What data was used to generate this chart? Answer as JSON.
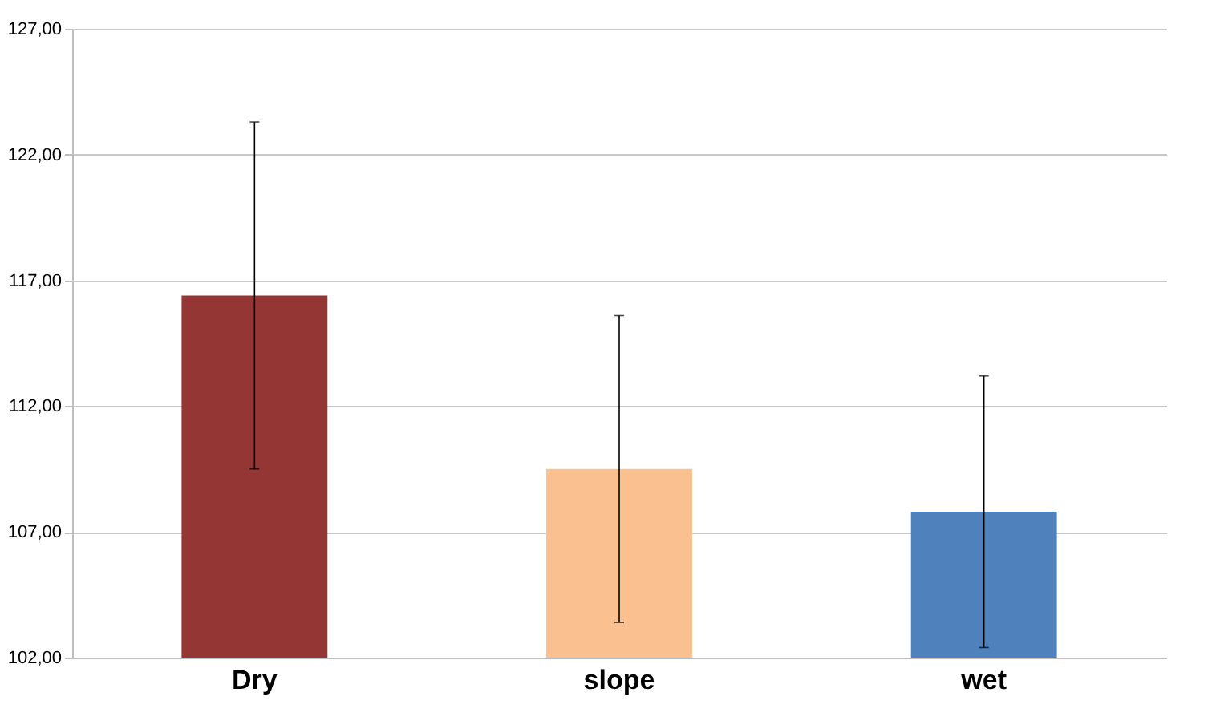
{
  "chart_data": {
    "type": "bar",
    "categories": [
      "Dry",
      "slope",
      "wet"
    ],
    "values": [
      116.4,
      109.5,
      107.8
    ],
    "colors": [
      "#943634",
      "#fac090",
      "#4f81bd"
    ],
    "errors": [
      6.9,
      6.1,
      5.4
    ],
    "ylim": [
      102,
      127
    ],
    "yticks": [
      {
        "value": 102,
        "label": "102,00"
      },
      {
        "value": 107,
        "label": "107,00"
      },
      {
        "value": 112,
        "label": "112,00"
      },
      {
        "value": 117,
        "label": "117,00"
      },
      {
        "value": 122,
        "label": "122,00"
      },
      {
        "value": 127,
        "label": "127,00"
      }
    ],
    "grid": "y"
  }
}
